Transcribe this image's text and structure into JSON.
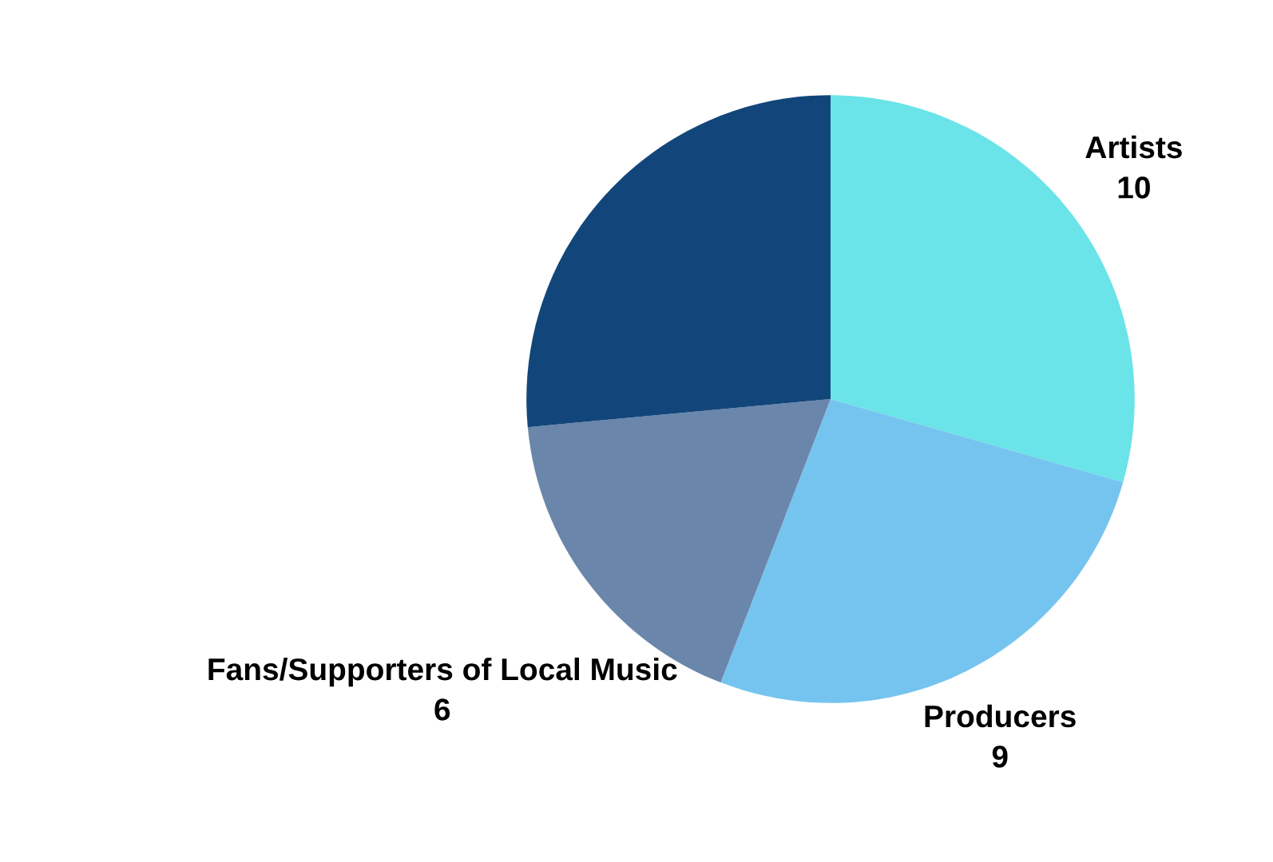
{
  "chart_data": {
    "type": "pie",
    "categories": [
      "Artists",
      "Producers",
      "Fans/Supporters of Local Music",
      null
    ],
    "values": [
      10,
      9,
      6,
      9
    ],
    "colors": [
      "#6ae4e8",
      "#75c4ef",
      "#6a86aa",
      "#12467b"
    ],
    "value_labels": [
      "10",
      "9",
      "6",
      null
    ]
  }
}
